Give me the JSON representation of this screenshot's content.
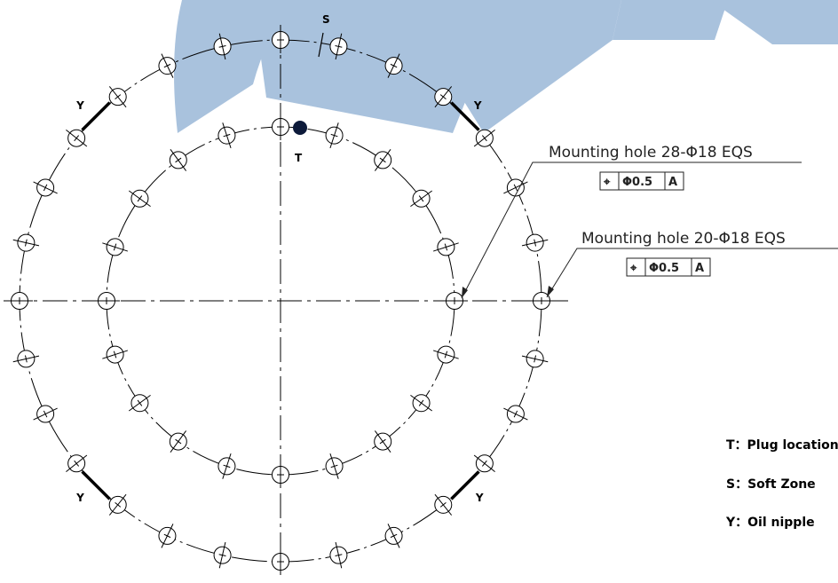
{
  "watermark": {
    "text": "XZW",
    "color": "#a9c2dd"
  },
  "outer_ring": {
    "hole_count": 28
  },
  "inner_ring": {
    "hole_count": 20
  },
  "markers": {
    "t": "T",
    "s": "S",
    "y": "Y"
  },
  "callouts": [
    {
      "id": "outer",
      "text": "Mounting hole 28-Φ18 EQS",
      "tol_symbol": "⌖",
      "tol_value": "Φ0.5",
      "tol_datum": "A"
    },
    {
      "id": "inner",
      "text": "Mounting hole 20-Φ18 EQS",
      "tol_symbol": "⌖",
      "tol_value": "Φ0.5",
      "tol_datum": "A"
    }
  ],
  "legend": [
    "T：Plug location",
    "S：Soft Zone",
    "Y：Oil nipple"
  ],
  "colors": {
    "line": "#000000",
    "hole": "#000000",
    "plug": "#0d1a3a"
  }
}
